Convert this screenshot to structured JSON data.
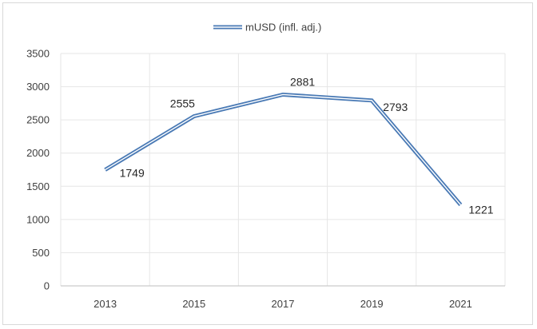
{
  "chart_data": {
    "type": "line",
    "title": "",
    "xlabel": "",
    "ylabel": "",
    "categories": [
      "2013",
      "2015",
      "2017",
      "2019",
      "2021"
    ],
    "series": [
      {
        "name": "mUSD (infl. adj.)",
        "values": [
          1749,
          2555,
          2881,
          2793,
          1221
        ],
        "data_labels": [
          "1749",
          "2555",
          "2881",
          "2793",
          "1221"
        ]
      }
    ],
    "ylim": [
      0,
      3500
    ],
    "yticks": [
      0,
      500,
      1000,
      1500,
      2000,
      2500,
      3000,
      3500
    ],
    "ytick_labels": [
      "0",
      "500",
      "1000",
      "1500",
      "2000",
      "2500",
      "3000",
      "3500"
    ],
    "grid": true,
    "legend_position": "top-center",
    "line_color": "#4a7ab5",
    "line_style": "double",
    "grid_color": "#e6e6e6",
    "axis_color": "#bfbfbf"
  }
}
